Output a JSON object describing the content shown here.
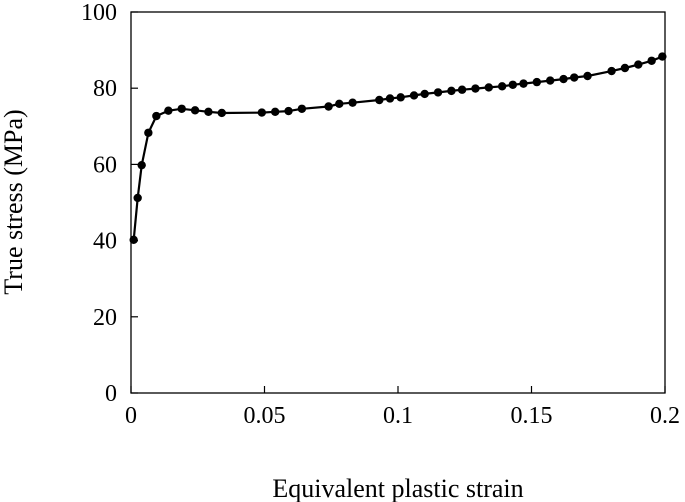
{
  "chart_data": {
    "type": "line",
    "xlabel": "Equivalent plastic strain",
    "ylabel": "True stress (MPa)",
    "xlim": [
      0,
      0.2
    ],
    "ylim": [
      0,
      100
    ],
    "x_ticks": [
      "0",
      "0.05",
      "0.1",
      "0.15",
      "0.2"
    ],
    "y_ticks": [
      "0",
      "20",
      "40",
      "60",
      "80",
      "100"
    ],
    "grid": false,
    "marker": "filled-circle",
    "line_color": "#000000",
    "series": [
      {
        "x": [
          0.001,
          0.0025,
          0.004,
          0.0065,
          0.0095,
          0.014,
          0.019,
          0.024,
          0.029,
          0.034,
          0.049,
          0.054,
          0.059,
          0.064,
          0.074,
          0.078,
          0.083,
          0.093,
          0.097,
          0.101,
          0.106,
          0.11,
          0.115,
          0.12,
          0.124,
          0.129,
          0.134,
          0.139,
          0.143,
          0.147,
          0.152,
          0.157,
          0.162,
          0.166,
          0.171,
          0.18,
          0.185,
          0.19,
          0.195,
          0.199
        ],
        "values": [
          40.2,
          51.2,
          59.8,
          68.3,
          72.7,
          74.1,
          74.6,
          74.2,
          73.8,
          73.5,
          73.6,
          73.8,
          74.0,
          74.6,
          75.2,
          75.9,
          76.2,
          76.9,
          77.3,
          77.6,
          78.1,
          78.5,
          78.9,
          79.3,
          79.6,
          79.9,
          80.2,
          80.5,
          80.9,
          81.2,
          81.6,
          82.0,
          82.4,
          82.8,
          83.2,
          84.5,
          85.3,
          86.2,
          87.2,
          88.3
        ]
      }
    ]
  }
}
